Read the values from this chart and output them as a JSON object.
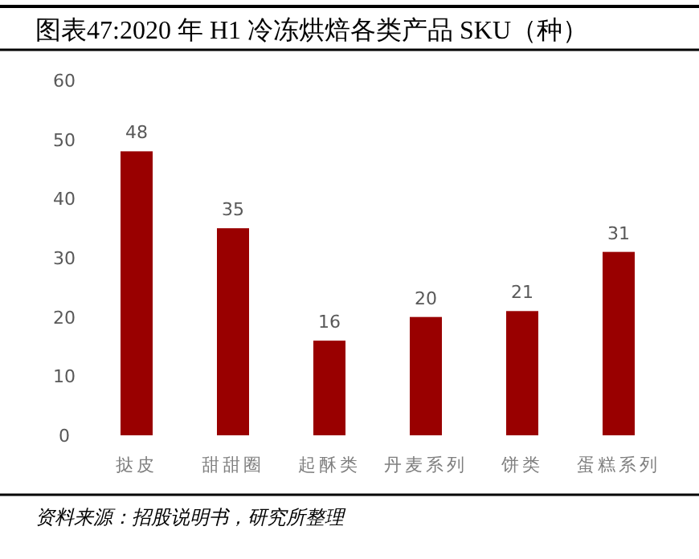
{
  "chart_data": {
    "type": "bar",
    "title": "图表47:2020 年 H1 冷冻烘焙各类产品 SKU（种）",
    "categories": [
      "挞皮",
      "甜甜圈",
      "起酥类",
      "丹麦系列",
      "饼类",
      "蛋糕系列"
    ],
    "values": [
      48,
      35,
      16,
      20,
      21,
      31
    ],
    "color": "#990000",
    "ylim": [
      0,
      60
    ],
    "yticks": [
      0,
      10,
      20,
      30,
      40,
      50,
      60
    ],
    "data_labels": true,
    "annotations": [
      "资料来源：招股说明书，研究所整理"
    ]
  }
}
